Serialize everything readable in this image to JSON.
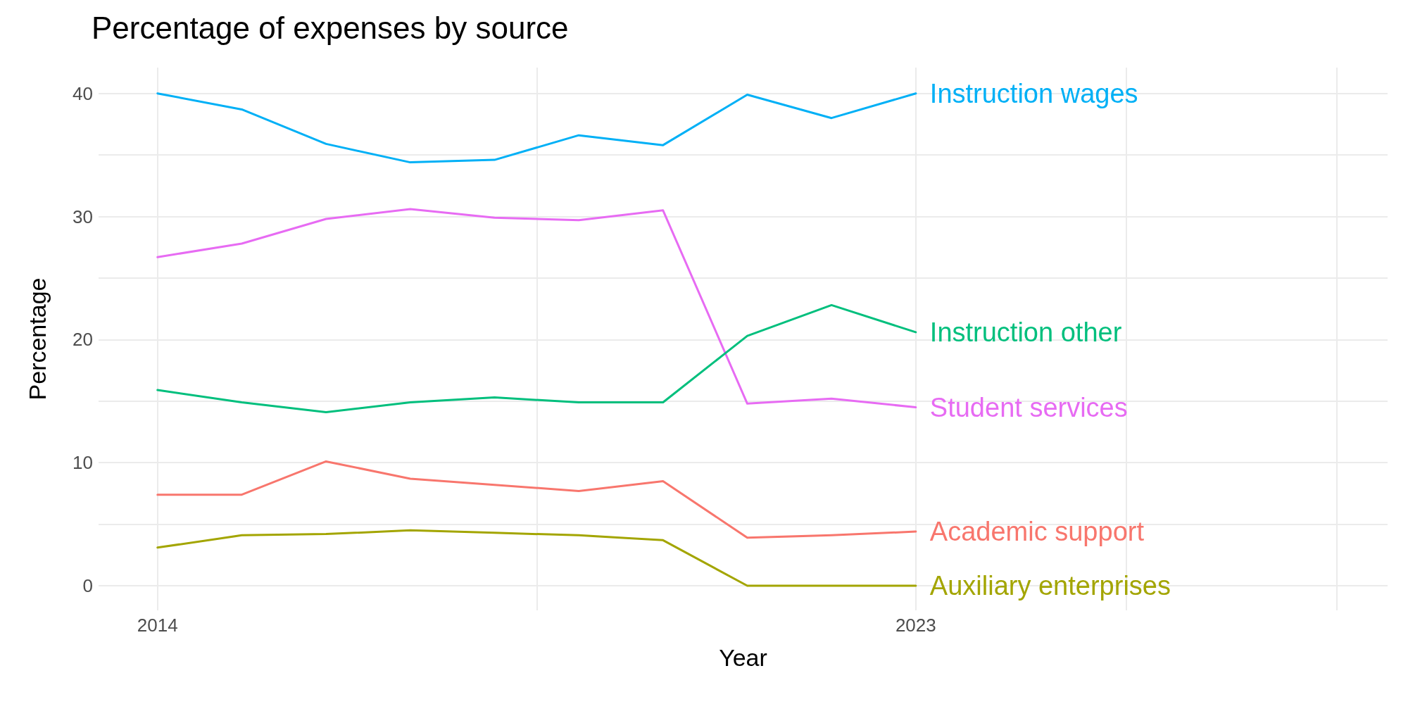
{
  "chart_data": {
    "type": "line",
    "title": "Percentage of expenses by source",
    "xlabel": "Year",
    "ylabel": "Percentage",
    "x": [
      2014,
      2015,
      2016,
      2017,
      2018,
      2019,
      2020,
      2021,
      2022,
      2023
    ],
    "xlim": [
      2013.3,
      2028.6
    ],
    "xticks": [
      2014,
      {
        "value": 2018.5,
        "label": null
      },
      2023,
      {
        "value": 2025.5,
        "label": null
      },
      {
        "value": 2028,
        "label": null
      }
    ],
    "ylim": [
      -2,
      42.1
    ],
    "yticks": [
      0,
      {
        "value": 5,
        "label": null
      },
      10,
      {
        "value": 15,
        "label": null
      },
      20,
      {
        "value": 25,
        "label": null
      },
      30,
      {
        "value": 35,
        "label": null
      },
      40
    ],
    "grid": true,
    "legend": false,
    "marker": "none",
    "line_style": "solid",
    "series": [
      {
        "name": "Instruction wages",
        "color": "#00b0f6",
        "values": [
          40.0,
          38.7,
          35.9,
          34.4,
          34.6,
          36.6,
          35.8,
          39.9,
          38.0,
          40.0
        ]
      },
      {
        "name": "Student services",
        "color": "#e76bf3",
        "values": [
          26.7,
          27.8,
          29.8,
          30.6,
          29.9,
          29.7,
          30.5,
          14.8,
          15.2,
          14.5
        ]
      },
      {
        "name": "Instruction other",
        "color": "#00bf7d",
        "values": [
          15.9,
          14.9,
          14.1,
          14.9,
          15.3,
          14.9,
          14.9,
          20.3,
          22.8,
          20.6
        ]
      },
      {
        "name": "Academic support",
        "color": "#f8766d",
        "values": [
          7.4,
          7.4,
          10.1,
          8.7,
          8.2,
          7.7,
          8.5,
          3.9,
          4.1,
          4.4
        ]
      },
      {
        "name": "Auxiliary enterprises",
        "color": "#a3a500",
        "values": [
          3.1,
          4.1,
          4.2,
          4.5,
          4.3,
          4.1,
          3.7,
          0,
          0,
          0
        ]
      }
    ]
  }
}
